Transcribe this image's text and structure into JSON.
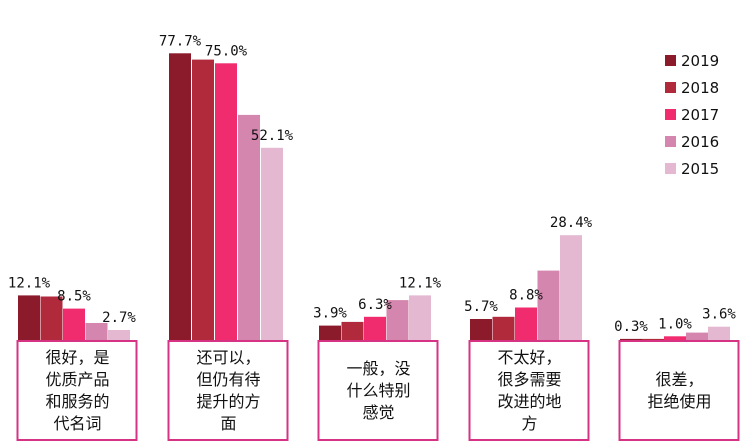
{
  "chart_data": {
    "type": "bar",
    "categories": [
      "很好，是优质产品和服务的代名词",
      "还可以，但仍有待提升的方面",
      "一般，没什么特别感觉",
      "不太好，很多需要改进的地方",
      "很差，拒绝使用"
    ],
    "category_lines": [
      [
        "很好，是",
        "优质产品",
        "和服务的",
        "代名词"
      ],
      [
        "还可以，",
        "但仍有待",
        "提升的方",
        "面"
      ],
      [
        "一般，没",
        "什么特别",
        "感觉"
      ],
      [
        "不太好，",
        "很多需要",
        "改进的地",
        "方"
      ],
      [
        "很差，",
        "拒绝使用"
      ]
    ],
    "series": [
      {
        "name": "2019",
        "color": "#8b1a2b",
        "values": [
          12.1,
          77.7,
          3.9,
          5.7,
          0.3
        ]
      },
      {
        "name": "2018",
        "color": "#b02a3c",
        "values": [
          11.8,
          76.0,
          4.9,
          6.3,
          0.3
        ]
      },
      {
        "name": "2017",
        "color": "#f02b6e",
        "values": [
          8.5,
          75.0,
          6.3,
          8.8,
          1.0
        ]
      },
      {
        "name": "2016",
        "color": "#d486ae",
        "values": [
          4.6,
          61.0,
          10.8,
          18.8,
          2.0
        ]
      },
      {
        "name": "2015",
        "color": "#e3b8d0",
        "values": [
          2.7,
          52.1,
          12.1,
          28.4,
          3.6
        ]
      }
    ],
    "data_labels": [
      [
        {
          "series": 0,
          "text": "12.1%"
        },
        {
          "series": 2,
          "text": "8.5%"
        },
        {
          "series": 4,
          "text": "2.7%"
        }
      ],
      [
        {
          "series": 0,
          "text": "77.7%"
        },
        {
          "series": 2,
          "text": "75.0%"
        },
        {
          "series": 4,
          "text": "52.1%"
        }
      ],
      [
        {
          "series": 0,
          "text": "3.9%"
        },
        {
          "series": 2,
          "text": "6.3%"
        },
        {
          "series": 4,
          "text": "12.1%"
        }
      ],
      [
        {
          "series": 0,
          "text": "5.7%"
        },
        {
          "series": 2,
          "text": "8.8%"
        },
        {
          "series": 4,
          "text": "28.4%"
        }
      ],
      [
        {
          "series": 0,
          "text": "0.3%"
        },
        {
          "series": 2,
          "text": "1.0%"
        },
        {
          "series": 4,
          "text": "3.6%"
        }
      ]
    ],
    "ylim": [
      0,
      80
    ],
    "grid": false,
    "legend_position": "top-right",
    "category_box_color": "#d63384"
  }
}
